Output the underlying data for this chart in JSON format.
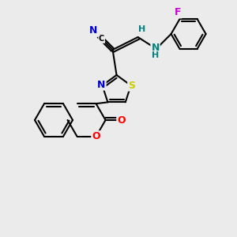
{
  "background_color": "#ebebeb",
  "bond_color": "#000000",
  "atom_colors": {
    "N": "#0000cc",
    "S": "#cccc00",
    "O": "#ff0000",
    "F": "#cc00cc",
    "NH": "#008080",
    "H": "#008080",
    "C": "#000000"
  },
  "lw": 1.5,
  "ring_r": 24,
  "thiaz_r": 19
}
